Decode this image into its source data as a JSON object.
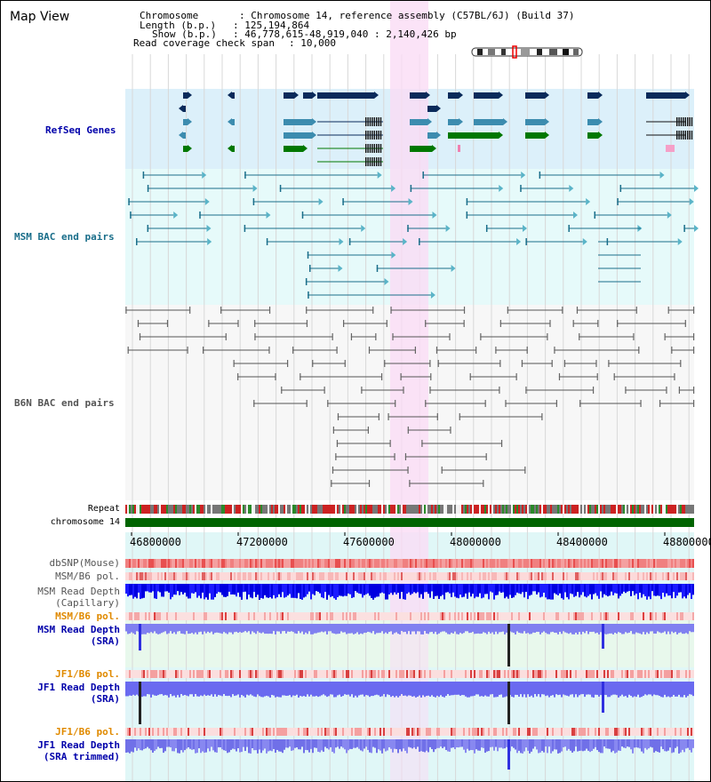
{
  "title": "Map View",
  "info": {
    "chromosome_key": "Chromosome",
    "chromosome_val": "Chromosome 14, reference assembly (C57BL/6J) (Build 37)",
    "length_key": "Length (b.p.)",
    "length_val": "125,194,864",
    "show_key": "Show (b.p.)",
    "show_val": "46,778,615-48,919,040 : 2,140,426 bp",
    "coverage_key": "Read coverage check span",
    "coverage_val": "10,000"
  },
  "tracks": {
    "refseq": "RefSeq Genes",
    "msm_bac": "MSM BAC end pairs",
    "b6n_bac": "B6N BAC end pairs",
    "repeat": "Repeat",
    "chromosome": "chromosome 14",
    "dbsnp": "dbSNP(Mouse)",
    "msm_b6_pol_1": "MSM/B6 pol.",
    "msm_depth_cap_1": "MSM Read Depth",
    "msm_depth_cap_2": "(Capillary)",
    "msm_b6_pol_2": "MSM/B6 pol.",
    "msm_depth_sra_1": "MSM Read Depth",
    "msm_depth_sra_2": "(SRA)",
    "jf1_b6_pol_1": "JF1/B6 pol.",
    "jf1_depth_sra_1": "JF1 Read Depth",
    "jf1_depth_sra_2": "(SRA)",
    "jf1_b6_pol_2": "JF1/B6 pol.",
    "jf1_depth_trim_1": "JF1 Read Depth",
    "jf1_depth_trim_2": "(SRA trimmed)"
  },
  "axis": {
    "ticks": [
      "46800000",
      "47200000",
      "47600000",
      "48000000",
      "48400000",
      "48800000"
    ]
  },
  "colors": {
    "refseq_bg": "#dcf0fa",
    "msm_bg": "#e6fafa",
    "highlight": "#fadcf5",
    "gene_dark": "#0a2a5a",
    "gene_mid": "#3c8caf",
    "gene_green": "#007800",
    "msm_line": "#1a6e8a",
    "b6n_line": "#555555",
    "chromosome": "#006400",
    "label_blue": "#0000aa",
    "label_orange": "#e08a00"
  }
}
